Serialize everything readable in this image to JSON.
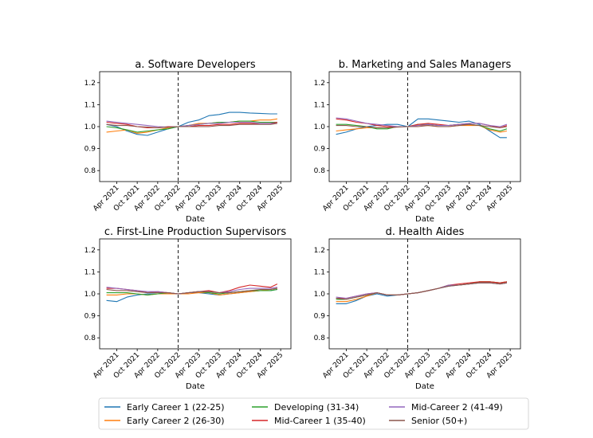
{
  "chart_data": [
    {
      "type": "line",
      "title": "a. Software Developers",
      "xlabel": "Date",
      "ylabel": "",
      "ylim": [
        0.75,
        1.25
      ],
      "yticks": [
        "0.8",
        "0.9",
        "1.0",
        "1.1",
        "1.2"
      ],
      "xticks": [
        "Apr 2021",
        "Oct 2021",
        "Apr 2022",
        "Oct 2022",
        "Apr 2023",
        "Oct 2023",
        "Apr 2024",
        "Oct 2024",
        "Apr 2025"
      ],
      "reference_line": "Oct 2022",
      "x": [
        "Jan 2021",
        "Apr 2021",
        "Jul 2021",
        "Oct 2021",
        "Jan 2022",
        "Apr 2022",
        "Jul 2022",
        "Oct 2022",
        "Jan 2023",
        "Apr 2023",
        "Jul 2023",
        "Oct 2023",
        "Jan 2024",
        "Apr 2024",
        "Jul 2024",
        "Oct 2024",
        "Jan 2025",
        "Mar 2025"
      ],
      "series": [
        {
          "name": "Early Career 1 (22-25)",
          "values": [
            1.01,
            1.0,
            0.98,
            0.965,
            0.96,
            0.975,
            0.99,
            1.0,
            1.02,
            1.03,
            1.05,
            1.055,
            1.065,
            1.065,
            1.062,
            1.06,
            1.058,
            1.058
          ]
        },
        {
          "name": "Early Career 2 (26-30)",
          "values": [
            0.975,
            0.98,
            0.985,
            0.97,
            0.975,
            0.985,
            0.995,
            1.0,
            1.005,
            1.015,
            1.015,
            1.02,
            1.02,
            1.025,
            1.025,
            1.03,
            1.03,
            1.035
          ]
        },
        {
          "name": "Developing (31-34)",
          "values": [
            1.0,
            0.995,
            0.985,
            0.975,
            0.98,
            0.985,
            0.99,
            1.0,
            1.005,
            1.01,
            1.015,
            1.02,
            1.02,
            1.025,
            1.025,
            1.02,
            1.02,
            1.02
          ]
        },
        {
          "name": "Mid-Career 1 (35-40)",
          "values": [
            1.02,
            1.015,
            1.01,
            1.0,
            0.995,
            0.995,
            1.0,
            1.0,
            1.0,
            1.005,
            1.005,
            1.01,
            1.01,
            1.015,
            1.015,
            1.015,
            1.015,
            1.02
          ]
        },
        {
          "name": "Mid-Career 2 (41-49)",
          "values": [
            1.025,
            1.02,
            1.015,
            1.01,
            1.005,
            1.0,
            0.998,
            1.0,
            1.005,
            1.01,
            1.015,
            1.015,
            1.02,
            1.02,
            1.02,
            1.015,
            1.015,
            1.015
          ]
        },
        {
          "name": "Senior (50+)",
          "values": [
            1.01,
            1.005,
            1.005,
            1.0,
            0.998,
            0.995,
            0.998,
            1.0,
            1.0,
            1.0,
            1.0,
            1.005,
            1.005,
            1.01,
            1.01,
            1.01,
            1.01,
            1.015
          ]
        }
      ]
    },
    {
      "type": "line",
      "title": "b. Marketing and Sales Managers",
      "xlabel": "Date",
      "ylabel": "",
      "ylim": [
        0.75,
        1.25
      ],
      "yticks": [
        "0.8",
        "0.9",
        "1.0",
        "1.1",
        "1.2"
      ],
      "xticks": [
        "Apr 2021",
        "Oct 2021",
        "Apr 2022",
        "Oct 2022",
        "Apr 2023",
        "Oct 2023",
        "Apr 2024",
        "Oct 2024",
        "Apr 2025"
      ],
      "reference_line": "Oct 2022",
      "x": [
        "Jan 2021",
        "Apr 2021",
        "Jul 2021",
        "Oct 2021",
        "Jan 2022",
        "Apr 2022",
        "Jul 2022",
        "Oct 2022",
        "Jan 2023",
        "Apr 2023",
        "Jul 2023",
        "Oct 2023",
        "Jan 2024",
        "Apr 2024",
        "Jul 2024",
        "Oct 2024",
        "Jan 2025",
        "Mar 2025"
      ],
      "series": [
        {
          "name": "Early Career 1 (22-25)",
          "values": [
            0.965,
            0.975,
            0.99,
            1.0,
            1.005,
            1.01,
            1.01,
            1.0,
            1.035,
            1.035,
            1.03,
            1.025,
            1.02,
            1.025,
            1.01,
            0.98,
            0.95,
            0.95
          ]
        },
        {
          "name": "Early Career 2 (26-30)",
          "values": [
            0.98,
            0.985,
            0.99,
            0.995,
            0.995,
            0.995,
            1.0,
            1.0,
            1.005,
            1.005,
            1.0,
            1.0,
            1.005,
            1.005,
            1.005,
            0.985,
            0.975,
            0.98
          ]
        },
        {
          "name": "Developing (31-34)",
          "values": [
            1.01,
            1.01,
            1.005,
            1.0,
            0.99,
            0.99,
            1.0,
            1.0,
            1.01,
            1.01,
            1.005,
            1.005,
            1.01,
            1.01,
            1.005,
            0.99,
            0.98,
            0.99
          ]
        },
        {
          "name": "Mid-Career 1 (35-40)",
          "values": [
            1.035,
            1.03,
            1.02,
            1.015,
            1.005,
            1.0,
            1.0,
            1.0,
            1.01,
            1.015,
            1.01,
            1.005,
            1.01,
            1.015,
            1.015,
            1.005,
            0.995,
            1.005
          ]
        },
        {
          "name": "Mid-Career 2 (41-49)",
          "values": [
            1.04,
            1.035,
            1.025,
            1.015,
            1.01,
            1.005,
            1.0,
            1.0,
            1.005,
            1.01,
            1.005,
            1.005,
            1.01,
            1.015,
            1.015,
            1.005,
            1.0,
            1.01
          ]
        },
        {
          "name": "Senior (50+)",
          "values": [
            1.005,
            1.005,
            1.0,
            1.0,
            0.995,
            0.995,
            0.998,
            1.0,
            1.0,
            1.005,
            1.0,
            1.0,
            1.005,
            1.01,
            1.005,
            1.0,
            0.995,
            1.0
          ]
        }
      ]
    },
    {
      "type": "line",
      "title": "c. First-Line Production Supervisors",
      "xlabel": "Date",
      "ylabel": "",
      "ylim": [
        0.75,
        1.25
      ],
      "yticks": [
        "0.8",
        "0.9",
        "1.0",
        "1.1",
        "1.2"
      ],
      "xticks": [
        "Apr 2021",
        "Oct 2021",
        "Apr 2022",
        "Oct 2022",
        "Apr 2023",
        "Oct 2023",
        "Apr 2024",
        "Oct 2024",
        "Apr 2025"
      ],
      "reference_line": "Oct 2022",
      "x": [
        "Jan 2021",
        "Apr 2021",
        "Jul 2021",
        "Oct 2021",
        "Jan 2022",
        "Apr 2022",
        "Jul 2022",
        "Oct 2022",
        "Jan 2023",
        "Apr 2023",
        "Jul 2023",
        "Oct 2023",
        "Jan 2024",
        "Apr 2024",
        "Jul 2024",
        "Oct 2024",
        "Jan 2025",
        "Mar 2025"
      ],
      "series": [
        {
          "name": "Early Career 1 (22-25)",
          "values": [
            0.97,
            0.965,
            0.985,
            0.995,
            1.0,
            1.0,
            1.005,
            1.0,
            1.005,
            1.005,
            1.0,
            0.995,
            1.0,
            1.005,
            1.01,
            1.015,
            1.015,
            1.02
          ]
        },
        {
          "name": "Early Career 2 (26-30)",
          "values": [
            0.995,
            0.995,
            1.0,
            1.0,
            0.995,
            1.0,
            1.0,
            1.0,
            1.0,
            1.005,
            1.005,
            0.995,
            1.0,
            1.005,
            1.01,
            1.015,
            1.02,
            1.025
          ]
        },
        {
          "name": "Developing (31-34)",
          "values": [
            1.005,
            1.005,
            1.005,
            1.0,
            0.995,
            1.0,
            1.005,
            1.0,
            1.005,
            1.01,
            1.005,
            1.0,
            1.005,
            1.01,
            1.015,
            1.015,
            1.015,
            1.02
          ]
        },
        {
          "name": "Mid-Career 1 (35-40)",
          "values": [
            1.025,
            1.025,
            1.02,
            1.015,
            1.005,
            1.01,
            1.005,
            1.0,
            1.005,
            1.01,
            1.015,
            1.005,
            1.015,
            1.03,
            1.04,
            1.035,
            1.03,
            1.045
          ]
        },
        {
          "name": "Mid-Career 2 (41-49)",
          "values": [
            1.03,
            1.025,
            1.02,
            1.015,
            1.01,
            1.01,
            1.005,
            1.0,
            1.005,
            1.01,
            1.01,
            1.005,
            1.01,
            1.02,
            1.025,
            1.025,
            1.025,
            1.03
          ]
        },
        {
          "name": "Senior (50+)",
          "values": [
            1.02,
            1.015,
            1.015,
            1.01,
            1.005,
            1.005,
            1.005,
            1.0,
            1.005,
            1.01,
            1.01,
            1.005,
            1.005,
            1.01,
            1.015,
            1.02,
            1.02,
            1.025
          ]
        }
      ]
    },
    {
      "type": "line",
      "title": "d. Health Aides",
      "xlabel": "Date",
      "ylabel": "",
      "ylim": [
        0.75,
        1.25
      ],
      "yticks": [
        "0.8",
        "0.9",
        "1.0",
        "1.1",
        "1.2"
      ],
      "xticks": [
        "Apr 2021",
        "Oct 2021",
        "Apr 2022",
        "Oct 2022",
        "Apr 2023",
        "Oct 2023",
        "Apr 2024",
        "Oct 2024",
        "Apr 2025"
      ],
      "reference_line": "Oct 2022",
      "x": [
        "Jan 2021",
        "Apr 2021",
        "Jul 2021",
        "Oct 2021",
        "Jan 2022",
        "Apr 2022",
        "Jul 2022",
        "Oct 2022",
        "Jan 2023",
        "Apr 2023",
        "Jul 2023",
        "Oct 2023",
        "Jan 2024",
        "Apr 2024",
        "Jul 2024",
        "Oct 2024",
        "Jan 2025",
        "Mar 2025"
      ],
      "series": [
        {
          "name": "Early Career 1 (22-25)",
          "values": [
            0.955,
            0.955,
            0.97,
            0.99,
            1.0,
            0.99,
            0.995,
            1.0,
            1.005,
            1.015,
            1.025,
            1.035,
            1.04,
            1.045,
            1.05,
            1.05,
            1.045,
            1.05
          ]
        },
        {
          "name": "Early Career 2 (26-30)",
          "values": [
            0.965,
            0.965,
            0.975,
            0.99,
            1.005,
            0.995,
            0.995,
            1.0,
            1.005,
            1.015,
            1.025,
            1.04,
            1.04,
            1.045,
            1.055,
            1.055,
            1.05,
            1.055
          ]
        },
        {
          "name": "Developing (31-34)",
          "values": [
            0.975,
            0.975,
            0.985,
            0.995,
            1.005,
            0.995,
            0.995,
            1.0,
            1.005,
            1.015,
            1.025,
            1.04,
            1.04,
            1.045,
            1.055,
            1.055,
            1.05,
            1.055
          ]
        },
        {
          "name": "Mid-Career 1 (35-40)",
          "values": [
            0.98,
            0.98,
            0.99,
            1.0,
            1.005,
            0.995,
            0.995,
            1.0,
            1.005,
            1.015,
            1.025,
            1.04,
            1.045,
            1.05,
            1.055,
            1.055,
            1.05,
            1.055
          ]
        },
        {
          "name": "Mid-Career 2 (41-49)",
          "values": [
            0.985,
            0.98,
            0.99,
            1.0,
            1.005,
            0.995,
            0.995,
            1.0,
            1.005,
            1.015,
            1.025,
            1.04,
            1.04,
            1.045,
            1.05,
            1.05,
            1.045,
            1.05
          ]
        },
        {
          "name": "Senior (50+)",
          "values": [
            0.98,
            0.975,
            0.985,
            0.995,
            1.005,
            0.995,
            0.995,
            1.0,
            1.005,
            1.015,
            1.025,
            1.035,
            1.04,
            1.045,
            1.05,
            1.05,
            1.045,
            1.05
          ]
        }
      ]
    }
  ],
  "legend": {
    "placement": "bottom-center",
    "entries": [
      {
        "label": "Early Career 1 (22-25)",
        "color": "#1f77b4"
      },
      {
        "label": "Developing (31-34)",
        "color": "#2ca02c"
      },
      {
        "label": "Mid-Career 2 (41-49)",
        "color": "#9467bd"
      },
      {
        "label": "Early Career 2 (26-30)",
        "color": "#ff7f0e"
      },
      {
        "label": "Mid-Career 1 (35-40)",
        "color": "#d62728"
      },
      {
        "label": "Senior (50+)",
        "color": "#8c564b"
      }
    ]
  },
  "series_colors": {
    "Early Career 1 (22-25)": "#1f77b4",
    "Early Career 2 (26-30)": "#ff7f0e",
    "Developing (31-34)": "#2ca02c",
    "Mid-Career 1 (35-40)": "#d62728",
    "Mid-Career 2 (41-49)": "#9467bd",
    "Senior (50+)": "#8c564b"
  }
}
